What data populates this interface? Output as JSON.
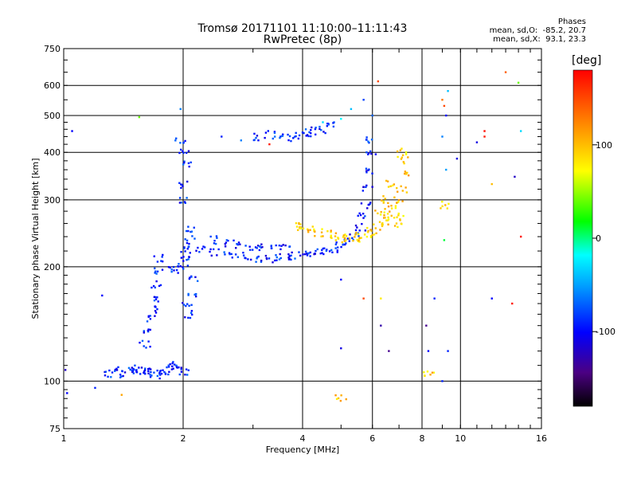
{
  "figure": {
    "title_line1": "Tromsø 20171101 11:10:00–11:11:43",
    "title_line2": "RwPretec (8p)",
    "stats_title": "Phases",
    "stats_line1": "mean, sd,O:  -85.2, 20.7",
    "stats_line2": "mean, sd,X:  93.1, 23.3",
    "colorbar_unit": "[deg]"
  },
  "chart_data": {
    "type": "scatter",
    "xlabel": "Frequency [MHz]",
    "ylabel": "Stationary phase Virtual Height [km]",
    "x_scale": "log",
    "y_scale": "log",
    "xlim": [
      1,
      16
    ],
    "ylim": [
      75,
      750
    ],
    "x_ticks": [
      1,
      2,
      4,
      6,
      8,
      10,
      16
    ],
    "x_tick_labels": [
      "1",
      "2",
      "4",
      "6",
      "8",
      "10",
      "16"
    ],
    "y_ticks": [
      75,
      100,
      200,
      300,
      400,
      500,
      600,
      750
    ],
    "y_tick_labels": [
      "75",
      "100",
      "200",
      "300",
      "400",
      "500",
      "600",
      "750"
    ],
    "grid": true,
    "colorbar": {
      "label": "[deg]",
      "range": [
        -180,
        180
      ],
      "ticks": [
        100,
        0,
        -100
      ],
      "tick_labels": [
        "100",
        "0",
        "-100"
      ]
    },
    "series": [
      {
        "role": "O-mode trace (blue)",
        "color_phase": -90,
        "points": [
          [
            1.55,
            105
          ],
          [
            1.6,
            106
          ],
          [
            1.65,
            107
          ],
          [
            1.7,
            105
          ],
          [
            1.75,
            104
          ],
          [
            1.8,
            106
          ],
          [
            1.85,
            108
          ],
          [
            1.9,
            110
          ],
          [
            1.95,
            108
          ],
          [
            2.0,
            106
          ],
          [
            1.3,
            105
          ],
          [
            1.35,
            107
          ],
          [
            1.4,
            104
          ],
          [
            1.45,
            106
          ],
          [
            1.5,
            108
          ],
          [
            1.6,
            125
          ],
          [
            1.62,
            135
          ],
          [
            1.65,
            145
          ],
          [
            1.68,
            155
          ],
          [
            1.7,
            165
          ],
          [
            1.72,
            180
          ],
          [
            1.73,
            195
          ],
          [
            1.74,
            210
          ],
          [
            1.9,
            195
          ],
          [
            1.95,
            200
          ],
          [
            2.0,
            205
          ],
          [
            2.02,
            215
          ],
          [
            2.05,
            225
          ],
          [
            2.08,
            235
          ],
          [
            2.1,
            250
          ],
          [
            2.2,
            222
          ],
          [
            2.4,
            218
          ],
          [
            2.6,
            215
          ],
          [
            2.8,
            213
          ],
          [
            3.0,
            211
          ],
          [
            3.2,
            210
          ],
          [
            3.4,
            210
          ],
          [
            3.6,
            211
          ],
          [
            3.8,
            213
          ],
          [
            4.0,
            214
          ],
          [
            4.2,
            216
          ],
          [
            4.4,
            218
          ],
          [
            4.6,
            220
          ],
          [
            4.8,
            223
          ],
          [
            5.0,
            227
          ],
          [
            5.2,
            232
          ],
          [
            5.4,
            240
          ],
          [
            5.6,
            255
          ],
          [
            5.7,
            270
          ],
          [
            5.8,
            290
          ],
          [
            5.85,
            320
          ],
          [
            5.9,
            360
          ],
          [
            5.95,
            400
          ],
          [
            5.98,
            430
          ],
          [
            2.4,
            235
          ],
          [
            2.6,
            230
          ],
          [
            2.8,
            228
          ],
          [
            3.0,
            226
          ],
          [
            3.2,
            224
          ],
          [
            3.4,
            223
          ],
          [
            3.6,
            225
          ],
          [
            3.1,
            440
          ],
          [
            3.3,
            445
          ],
          [
            3.5,
            440
          ],
          [
            3.7,
            435
          ],
          [
            3.9,
            445
          ],
          [
            4.1,
            450
          ],
          [
            4.3,
            455
          ],
          [
            4.5,
            460
          ],
          [
            4.7,
            470
          ],
          [
            2.01,
            300
          ],
          [
            2.02,
            330
          ],
          [
            2.03,
            370
          ],
          [
            2.0,
            400
          ],
          [
            1.97,
            430
          ],
          [
            2.05,
            160
          ],
          [
            2.08,
            150
          ],
          [
            2.1,
            170
          ],
          [
            2.12,
            185
          ]
        ]
      },
      {
        "role": "X-mode trace (yellow)",
        "color_phase": 93,
        "points": [
          [
            3.9,
            255
          ],
          [
            4.0,
            252
          ],
          [
            4.2,
            250
          ],
          [
            4.4,
            246
          ],
          [
            4.6,
            243
          ],
          [
            4.8,
            240
          ],
          [
            5.0,
            238
          ],
          [
            5.2,
            237
          ],
          [
            5.4,
            238
          ],
          [
            5.6,
            240
          ],
          [
            5.8,
            243
          ],
          [
            6.0,
            248
          ],
          [
            6.2,
            255
          ],
          [
            6.4,
            262
          ],
          [
            6.6,
            272
          ],
          [
            6.8,
            285
          ],
          [
            7.0,
            300
          ],
          [
            7.1,
            320
          ],
          [
            7.2,
            350
          ],
          [
            7.15,
            380
          ],
          [
            7.1,
            400
          ],
          [
            6.3,
            280
          ],
          [
            6.5,
            300
          ],
          [
            6.7,
            330
          ],
          [
            6.9,
            260
          ],
          [
            7.0,
            270
          ],
          [
            5.0,
            90
          ],
          [
            8.3,
            104
          ],
          [
            9.1,
            290
          ]
        ]
      },
      {
        "role": "scattered points (mixed phases)",
        "points": [
          [
            1.05,
            455,
            -100
          ],
          [
            1.01,
            107,
            -120
          ],
          [
            1.02,
            93,
            -100
          ],
          [
            1.2,
            96,
            -90
          ],
          [
            1.25,
            168,
            -100
          ],
          [
            1.4,
            92,
            110
          ],
          [
            1.55,
            495,
            40
          ],
          [
            1.97,
            520,
            -60
          ],
          [
            2.5,
            440,
            -90
          ],
          [
            2.8,
            430,
            -60
          ],
          [
            3.3,
            420,
            170
          ],
          [
            4.5,
            480,
            -30
          ],
          [
            5.0,
            490,
            -20
          ],
          [
            5.3,
            520,
            -40
          ],
          [
            5.7,
            550,
            -80
          ],
          [
            6.0,
            500,
            -70
          ],
          [
            5.0,
            185,
            -100
          ],
          [
            5.0,
            122,
            -110
          ],
          [
            5.7,
            165,
            150
          ],
          [
            6.3,
            165,
            80
          ],
          [
            6.3,
            140,
            -130
          ],
          [
            6.2,
            615,
            150
          ],
          [
            6.6,
            120,
            -140
          ],
          [
            8.2,
            140,
            -140
          ],
          [
            8.3,
            120,
            -100
          ],
          [
            8.6,
            165,
            -90
          ],
          [
            9.0,
            550,
            130
          ],
          [
            9.1,
            530,
            150
          ],
          [
            9.2,
            500,
            -100
          ],
          [
            9.3,
            580,
            -40
          ],
          [
            9.0,
            440,
            -60
          ],
          [
            9.2,
            360,
            -50
          ],
          [
            9.0,
            100,
            -90
          ],
          [
            9.3,
            120,
            -90
          ],
          [
            8.4,
            104,
            110
          ],
          [
            9.1,
            235,
            10
          ],
          [
            9.8,
            385,
            -110
          ],
          [
            11.0,
            425,
            -110
          ],
          [
            11.5,
            455,
            175
          ],
          [
            11.5,
            440,
            170
          ],
          [
            12.0,
            330,
            100
          ],
          [
            12.0,
            165,
            -100
          ],
          [
            13.0,
            650,
            140
          ],
          [
            14.0,
            610,
            40
          ],
          [
            14.2,
            455,
            -30
          ],
          [
            14.2,
            240,
            175
          ],
          [
            13.5,
            160,
            170
          ],
          [
            13.7,
            345,
            -120
          ]
        ]
      }
    ]
  }
}
